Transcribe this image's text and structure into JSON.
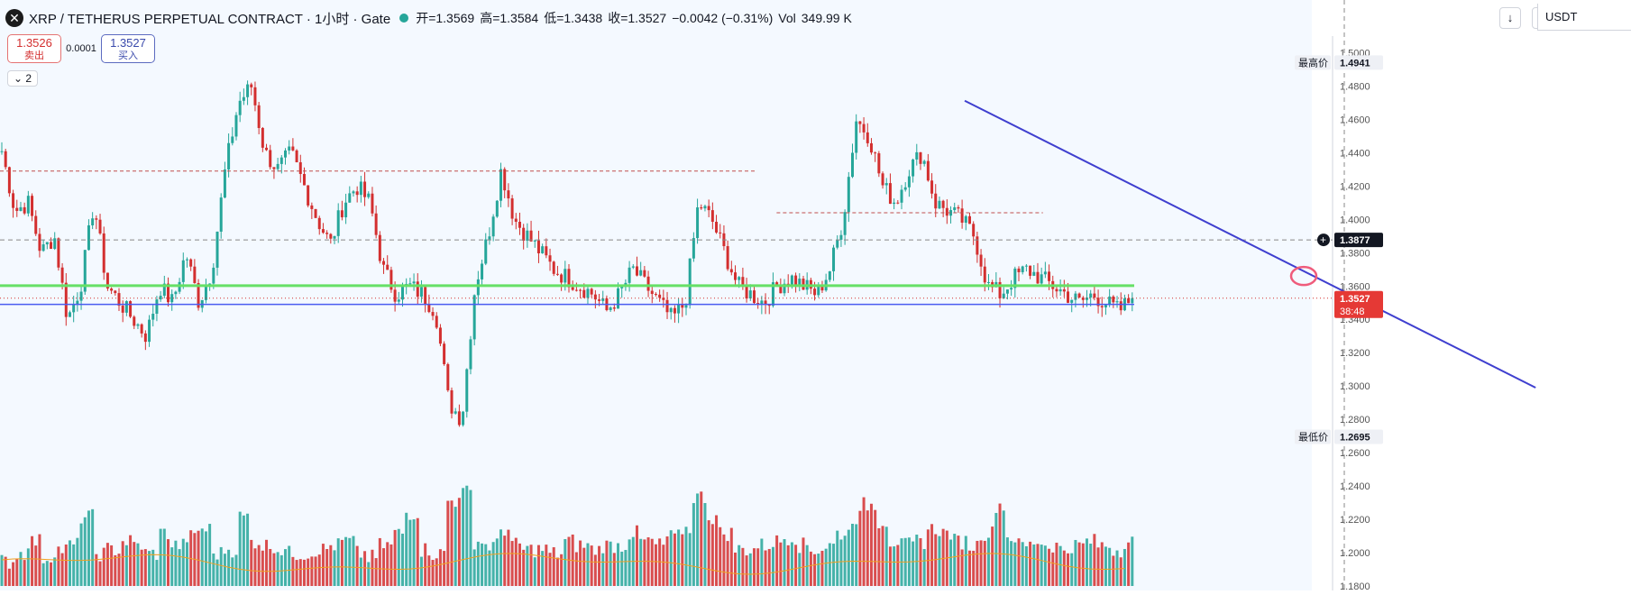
{
  "header": {
    "title": "XRP / TETHERUS PERPETUAL CONTRACT · 1小时 · Gate",
    "open_label": "开=1.3569",
    "high_label": "高=1.3584",
    "low_label": "低=1.3438",
    "close_label": "收=1.3527",
    "change_label": "−0.0042 (−0.31%)",
    "vol_label": "Vol",
    "vol_value": "349.99 K",
    "logo_glyph": "✕"
  },
  "trade": {
    "sell_price": "1.3526",
    "sell_label": "卖出",
    "spread": "0.0001",
    "buy_price": "1.3527",
    "buy_label": "买入",
    "collapse_label": "⌄ 2"
  },
  "toolbar": {
    "download_icon": "↓",
    "refresh_icon": "⟲",
    "currency": "USDT"
  },
  "colors": {
    "up": "#26a69a",
    "down": "#d32f2f",
    "trendline": "#3f3fcf",
    "support_green": "#66e066",
    "support_blue": "#4a5cf0",
    "volume_ma": "#f0a020"
  },
  "chart_data": {
    "type": "candlestick",
    "interval": "1小时",
    "ylim": [
      1.18,
      1.51
    ],
    "y_ticks": [
      "1.5000",
      "1.4800",
      "1.4600",
      "1.4400",
      "1.4200",
      "1.4000",
      "1.3800",
      "1.3600",
      "1.3400",
      "1.3200",
      "1.3000",
      "1.2800",
      "1.2600",
      "1.2400",
      "1.2200",
      "1.2000",
      "1.1800"
    ],
    "high_marker": {
      "label": "最高价",
      "value": "1.4941"
    },
    "low_marker": {
      "label": "最低价",
      "value": "1.2695"
    },
    "crosshair_price": "1.3877",
    "last_price": "1.3527",
    "countdown": "38:48",
    "anchors": [
      [
        1.441,
        1.405,
        1.41,
        1.38,
        1.39,
        1.34,
        1.36,
        1.41,
        1.36,
        1.35,
        1.34,
        1.33,
        1.36,
        1.35,
        1.38,
        1.35,
        1.37,
        1.43,
        1.47,
        1.48,
        1.44,
        1.43,
        1.44,
        1.42,
        1.4,
        1.385,
        1.41,
        1.42,
        1.41,
        1.37,
        1.355,
        1.36,
        1.355,
        1.345,
        1.29,
        1.28,
        1.36,
        1.39,
        1.43,
        1.4,
        1.39,
        1.38,
        1.37,
        1.365,
        1.36,
        1.355,
        1.345,
        1.355,
        1.37,
        1.36,
        1.35,
        1.34,
        1.35,
        1.41,
        1.4,
        1.38,
        1.36,
        1.355,
        1.35,
        1.36,
        1.365,
        1.36,
        1.355,
        1.37,
        1.4,
        1.46,
        1.45,
        1.42,
        1.41,
        1.43,
        1.44,
        1.41,
        1.405,
        1.4,
        1.39,
        1.36,
        1.355,
        1.365,
        1.37,
        1.365,
        1.36,
        1.355,
        1.35,
        1.355,
        1.35,
        1.345,
        1.3527
      ]
    ],
    "volume": [
      40,
      60,
      90,
      50,
      70,
      80,
      150,
      60,
      70,
      90,
      80,
      60,
      110,
      80,
      100,
      120,
      60,
      70,
      150,
      90,
      80,
      70,
      60,
      60,
      70,
      80,
      90,
      60,
      50,
      80,
      110,
      160,
      70,
      60,
      190,
      210,
      90,
      80,
      120,
      80,
      70,
      70,
      60,
      90,
      80,
      70,
      80,
      80,
      110,
      90,
      80,
      100,
      120,
      200,
      150,
      110,
      70,
      70,
      80,
      90,
      100,
      80,
      70,
      80,
      110,
      150,
      180,
      140,
      90,
      80,
      90,
      120,
      110,
      90,
      80,
      110,
      180,
      100,
      80,
      90,
      80,
      70,
      80,
      90,
      80,
      70,
      90
    ],
    "trendline": [
      [
        0.5915,
        1.4712
      ],
      [
        0.9415,
        1.299
      ]
    ],
    "horizontal_lines": [
      {
        "value": 1.3602,
        "color": "green"
      },
      {
        "value": 1.349,
        "color": "blue"
      },
      {
        "value": 1.3877,
        "color": "grey-dashed"
      },
      {
        "value": 1.3527,
        "color": "red-dotted"
      }
    ],
    "levels": [
      {
        "value": 1.429,
        "from": 0.0,
        "to": 0.577
      },
      {
        "value": 1.404,
        "from": 0.592,
        "to": 0.795
      }
    ]
  }
}
